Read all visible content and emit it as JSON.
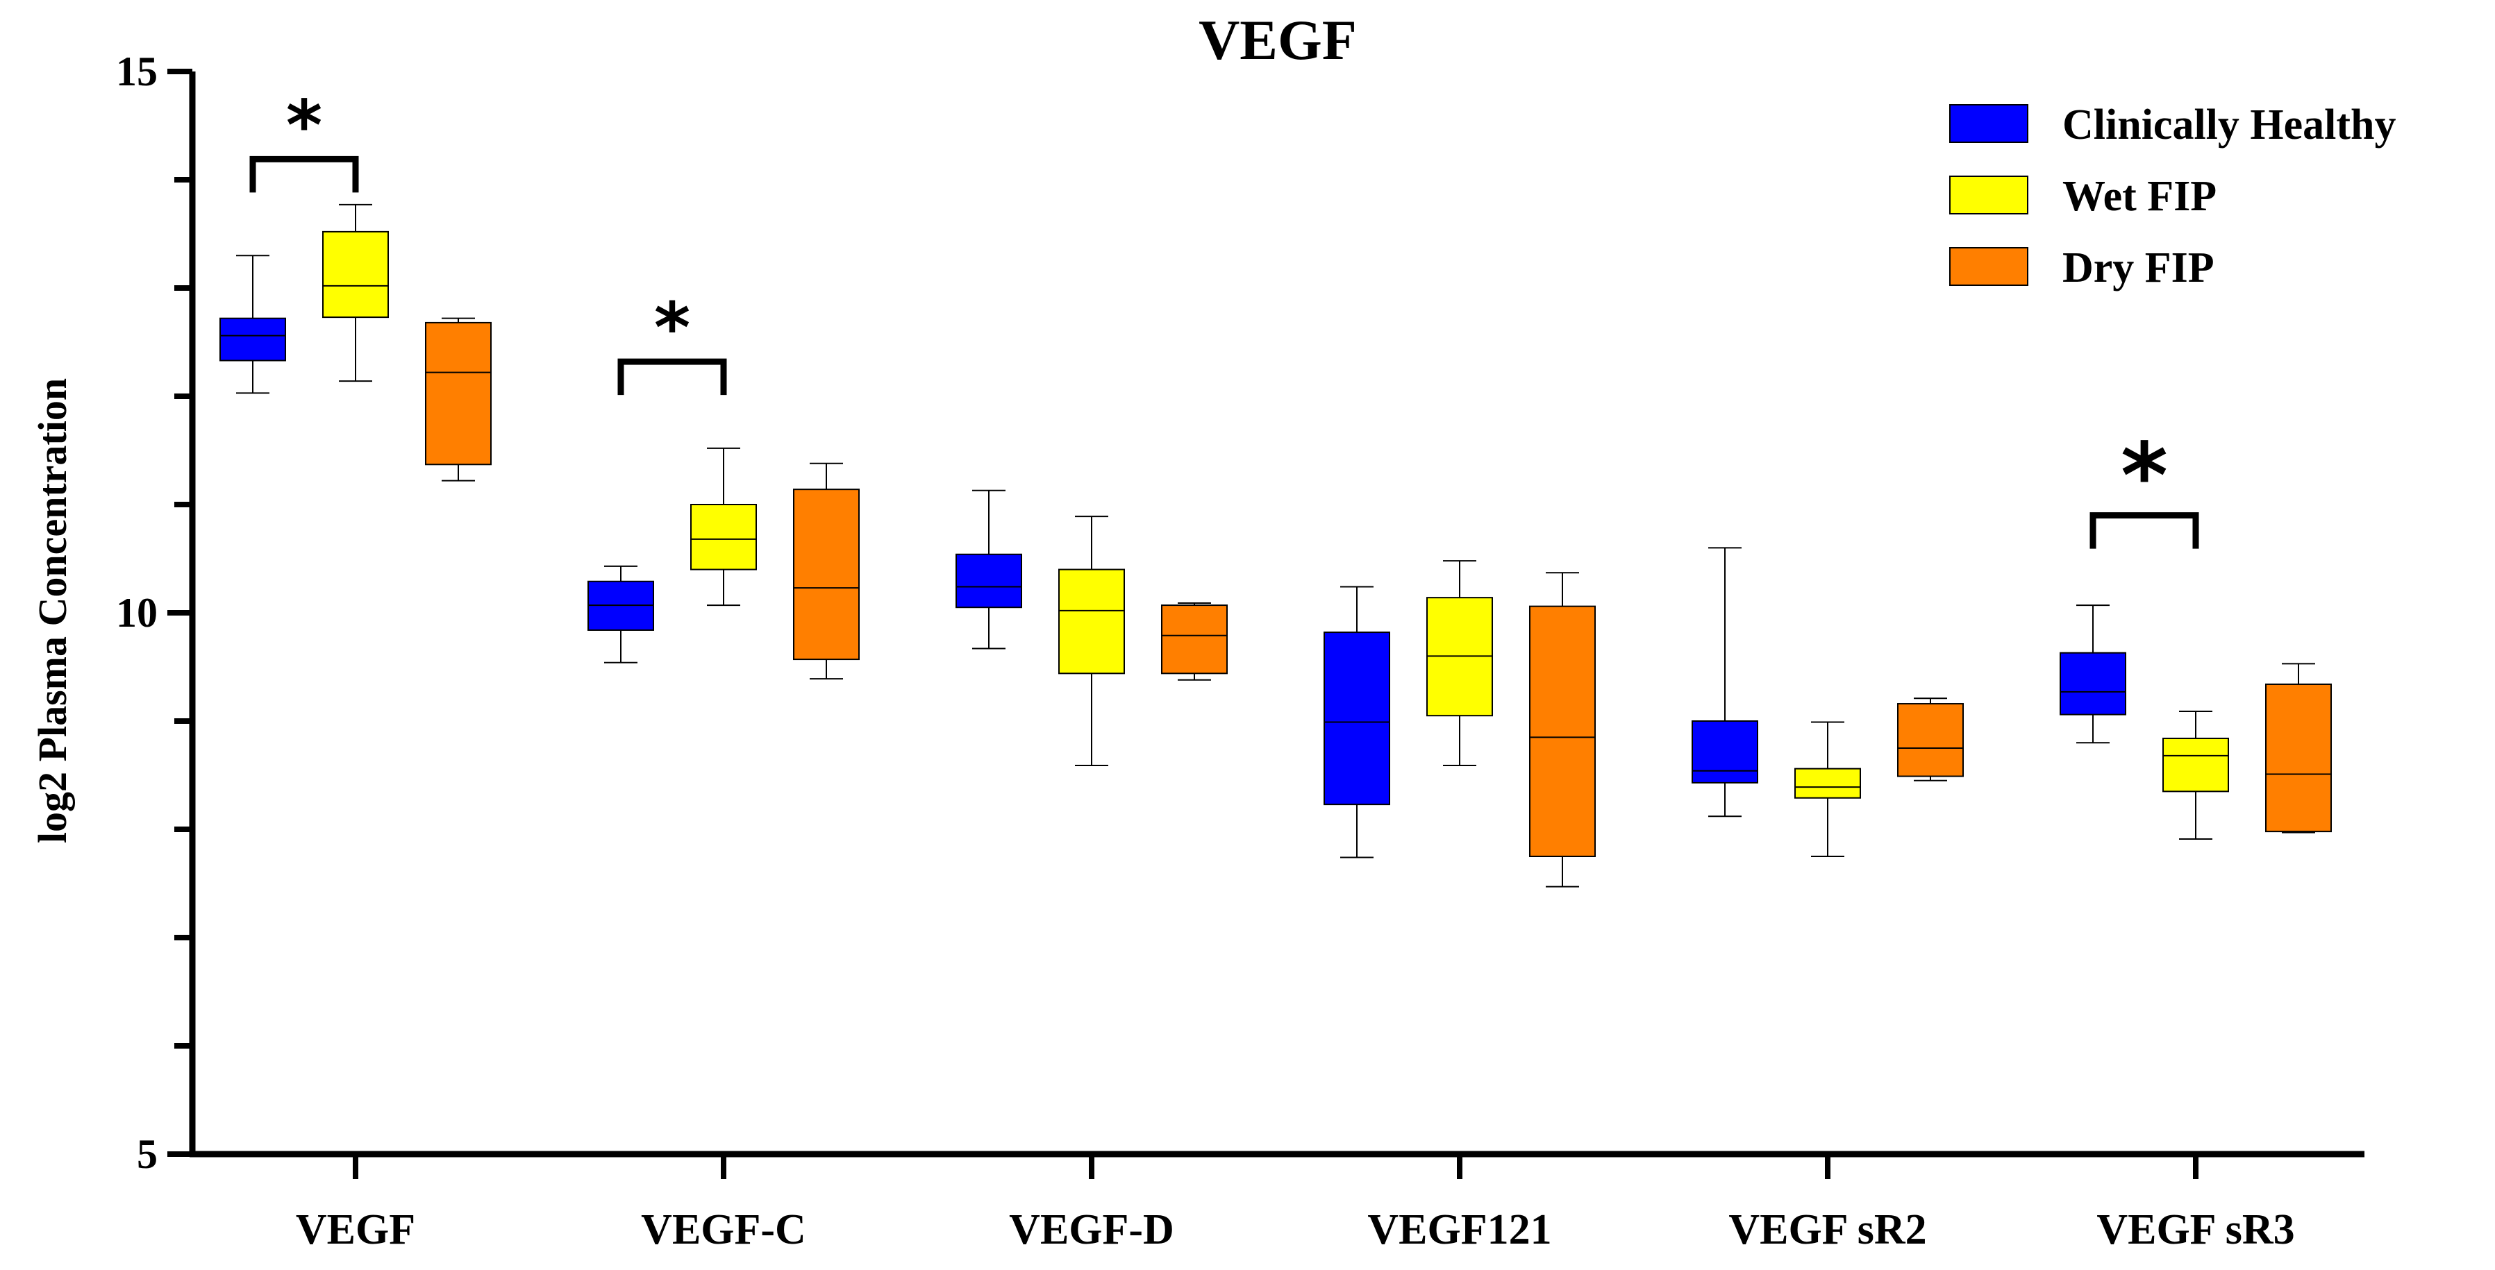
{
  "chart_data": {
    "type": "boxplot",
    "title": "VEGF",
    "xlabel": "",
    "ylabel": "log2 Plasma Concentration",
    "ylim": [
      5,
      15
    ],
    "yticks": [
      5,
      10,
      15
    ],
    "y_minor_step": 1,
    "categories": [
      "VEGF",
      "VEGF-C",
      "VEGF-D",
      "VEGF121",
      "VEGF sR2",
      "VEGF sR3"
    ],
    "legend_position": "top-right",
    "series": [
      {
        "name": "Clinically Healthy",
        "color": "#0000ff",
        "boxes": [
          {
            "min": 12.03,
            "q1": 12.33,
            "median": 12.56,
            "q3": 12.72,
            "max": 13.3
          },
          {
            "min": 9.54,
            "q1": 9.84,
            "median": 10.07,
            "q3": 10.29,
            "max": 10.43
          },
          {
            "min": 9.67,
            "q1": 10.05,
            "median": 10.24,
            "q3": 10.54,
            "max": 11.13
          },
          {
            "min": 7.74,
            "q1": 8.23,
            "median": 8.99,
            "q3": 9.82,
            "max": 10.24
          },
          {
            "min": 8.12,
            "q1": 8.43,
            "median": 8.54,
            "q3": 9.0,
            "max": 10.6
          },
          {
            "min": 8.8,
            "q1": 9.06,
            "median": 9.27,
            "q3": 9.63,
            "max": 10.07
          }
        ]
      },
      {
        "name": "Wet FIP",
        "color": "#ffff00",
        "boxes": [
          {
            "min": 12.14,
            "q1": 12.73,
            "median": 13.02,
            "q3": 13.52,
            "max": 13.77
          },
          {
            "min": 10.07,
            "q1": 10.4,
            "median": 10.68,
            "q3": 11.0,
            "max": 11.52
          },
          {
            "min": 8.59,
            "q1": 9.44,
            "median": 10.02,
            "q3": 10.4,
            "max": 10.89
          },
          {
            "min": 8.59,
            "q1": 9.05,
            "median": 9.6,
            "q3": 10.14,
            "max": 10.48
          },
          {
            "min": 7.75,
            "q1": 8.29,
            "median": 8.39,
            "q3": 8.56,
            "max": 8.99
          },
          {
            "min": 7.91,
            "q1": 8.35,
            "median": 8.68,
            "q3": 8.84,
            "max": 9.09
          }
        ]
      },
      {
        "name": "Dry FIP",
        "color": "#ff7f00",
        "boxes": [
          {
            "min": 11.22,
            "q1": 11.37,
            "median": 12.22,
            "q3": 12.68,
            "max": 12.72
          },
          {
            "min": 9.39,
            "q1": 9.57,
            "median": 10.23,
            "q3": 11.14,
            "max": 11.38
          },
          {
            "min": 9.38,
            "q1": 9.44,
            "median": 9.79,
            "q3": 10.07,
            "max": 10.09
          },
          {
            "min": 7.47,
            "q1": 7.75,
            "median": 8.85,
            "q3": 10.06,
            "max": 10.37
          },
          {
            "min": 8.45,
            "q1": 8.49,
            "median": 8.75,
            "q3": 9.16,
            "max": 9.21
          },
          {
            "min": 7.97,
            "q1": 7.98,
            "median": 8.51,
            "q3": 9.34,
            "max": 9.53
          }
        ]
      }
    ],
    "annotations": [
      {
        "text": "*",
        "category": "VEGF",
        "from_series": 0,
        "to_series": 1,
        "bracket_value": 14.19,
        "size": "small"
      },
      {
        "text": "*",
        "category": "VEGF-C",
        "from_series": 0,
        "to_series": 1,
        "bracket_value": 12.32,
        "size": "small"
      },
      {
        "text": "*",
        "category": "VEGF sR3",
        "from_series": 0,
        "to_series": 1,
        "bracket_value": 10.9,
        "size": "large"
      }
    ]
  }
}
